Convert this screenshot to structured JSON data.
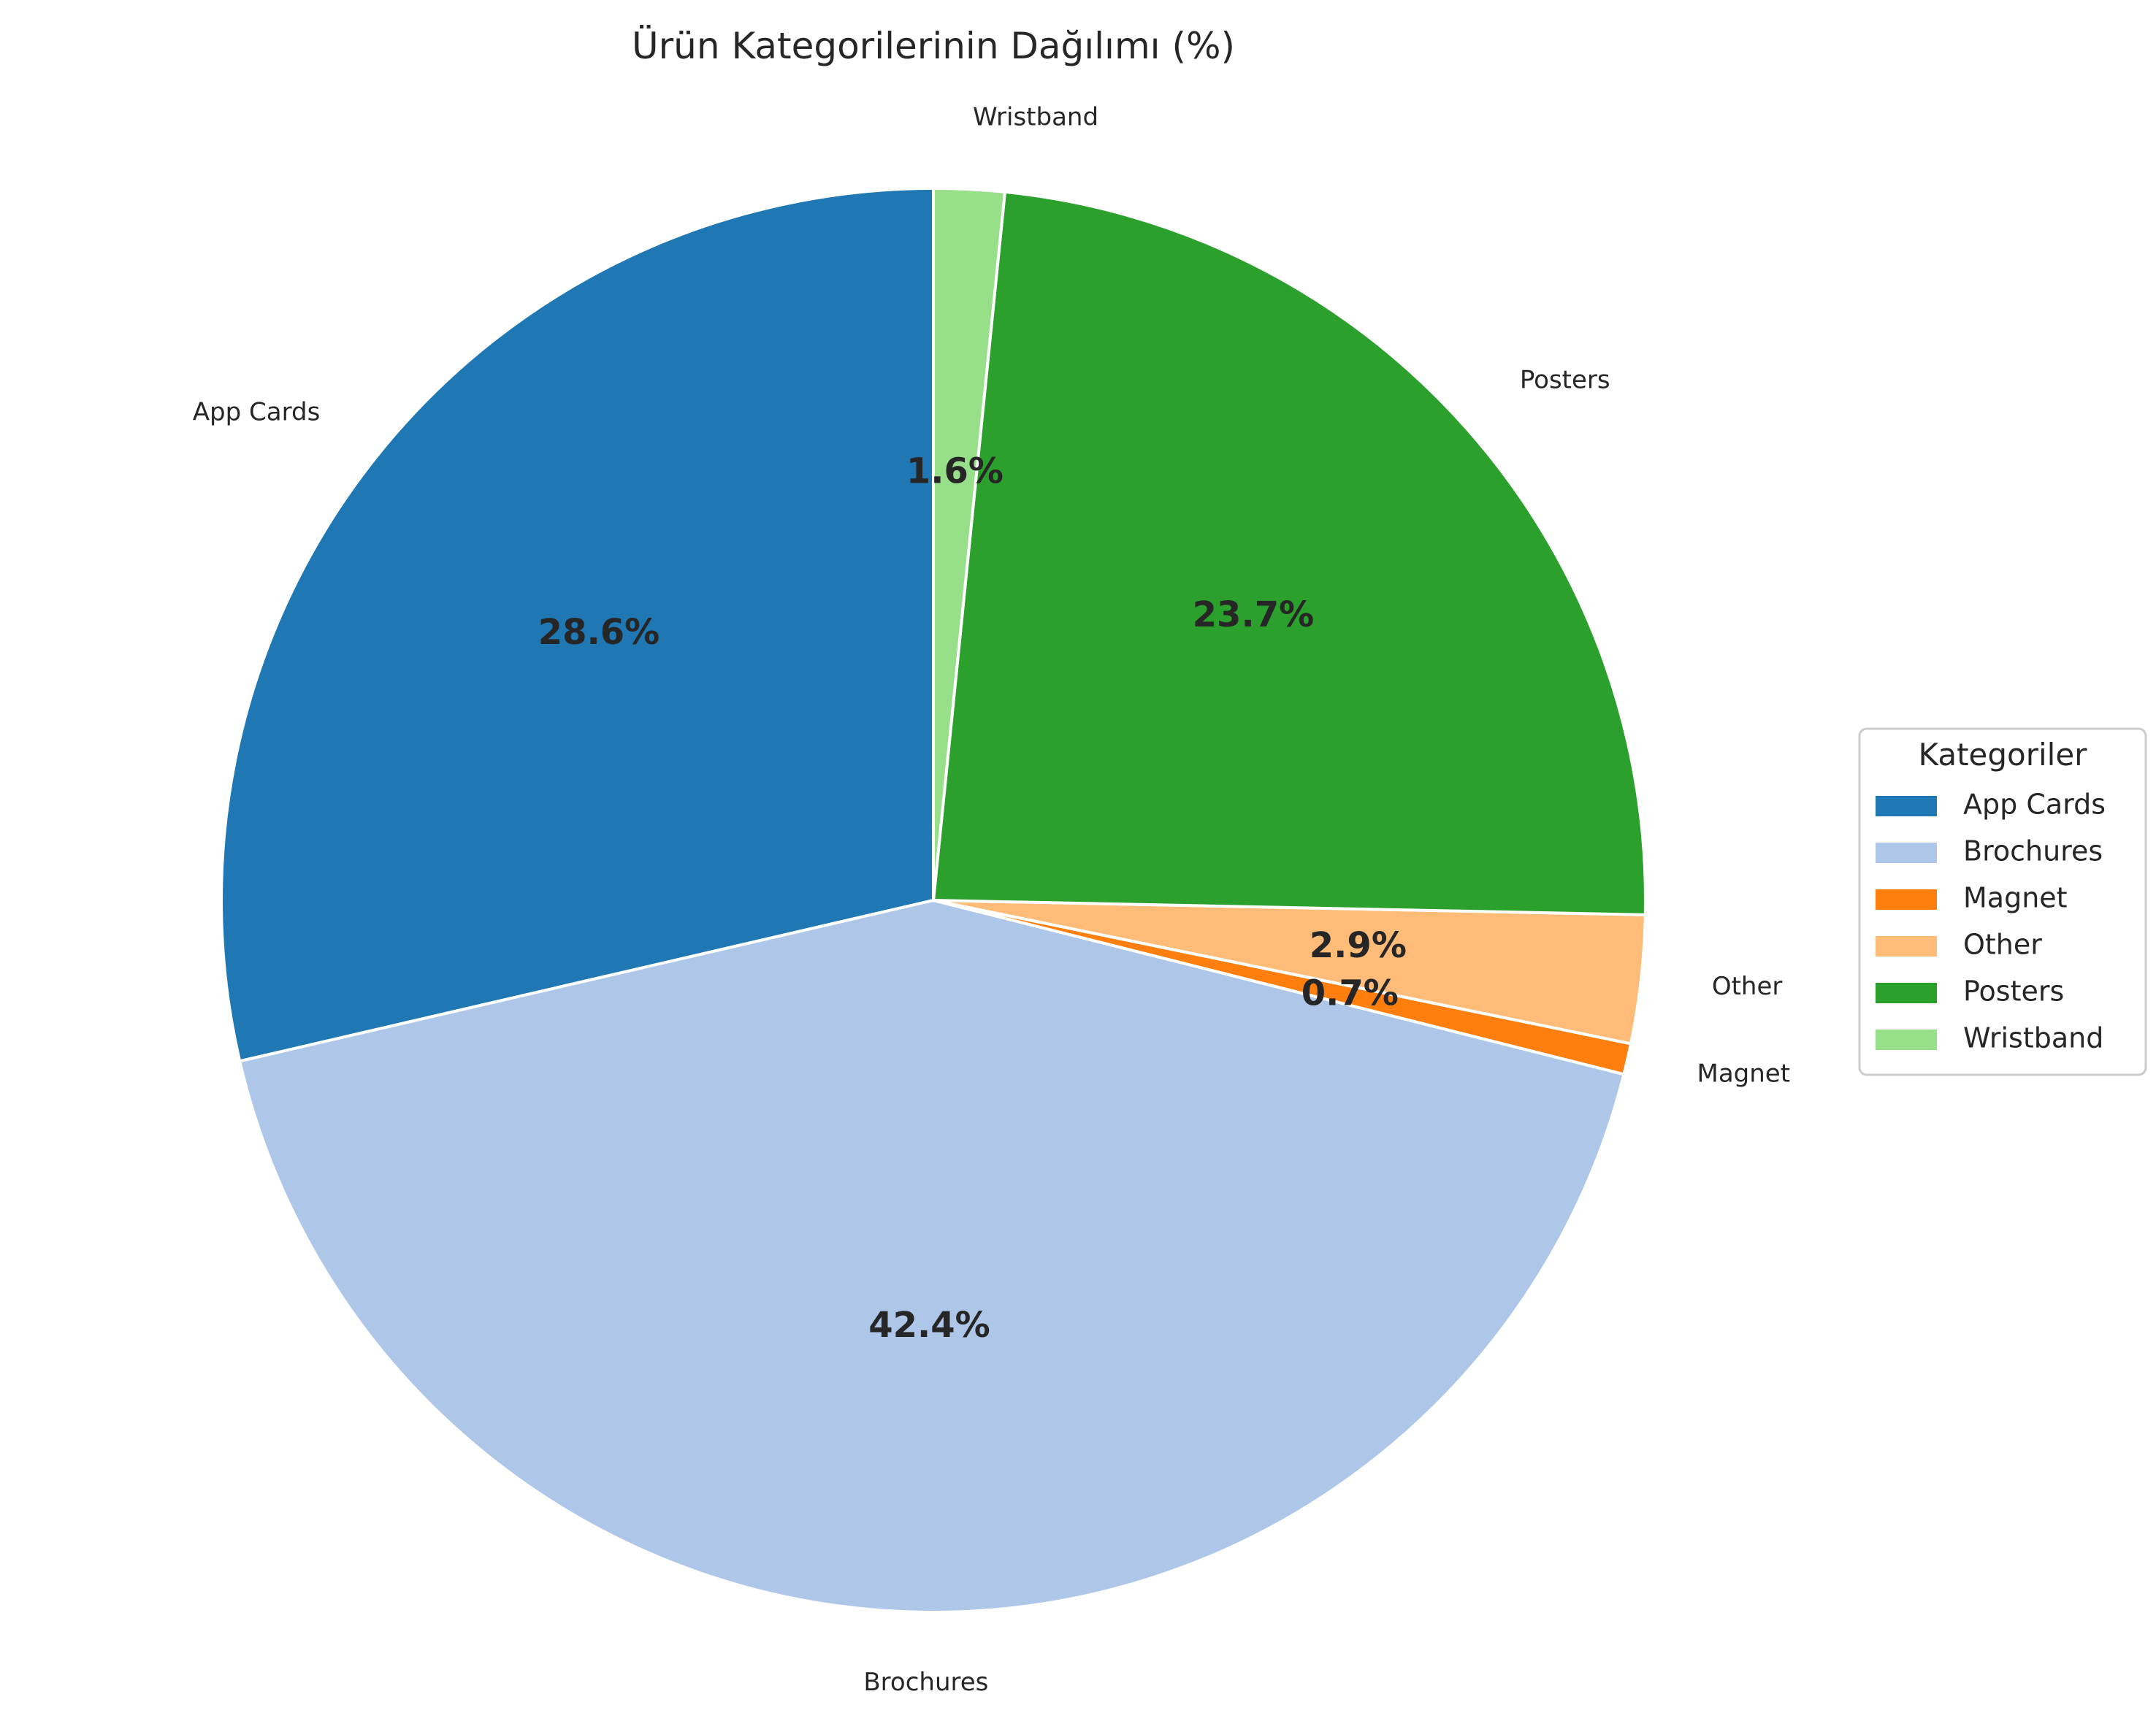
{
  "chart_data": {
    "type": "pie",
    "title": "Ürün Kategorilerinin Dağılımı (%)",
    "legend": {
      "title": "Kategoriler",
      "placement": "right"
    },
    "start_angle_deg": 90,
    "direction": "counterclockwise",
    "slices": [
      {
        "label": "App Cards",
        "value": 28.6,
        "pct_label": "28.6%",
        "color": "#1f77b4"
      },
      {
        "label": "Brochures",
        "value": 42.4,
        "pct_label": "42.4%",
        "color": "#aec7e8"
      },
      {
        "label": "Magnet",
        "value": 0.7,
        "pct_label": "0.7%",
        "color": "#ff7f0e"
      },
      {
        "label": "Other",
        "value": 2.9,
        "pct_label": "2.9%",
        "color": "#ffbb78"
      },
      {
        "label": "Posters",
        "value": 23.7,
        "pct_label": "23.7%",
        "color": "#2ca02c"
      },
      {
        "label": "Wristband",
        "value": 1.6,
        "pct_label": "1.6%",
        "color": "#98df8a"
      }
    ]
  }
}
